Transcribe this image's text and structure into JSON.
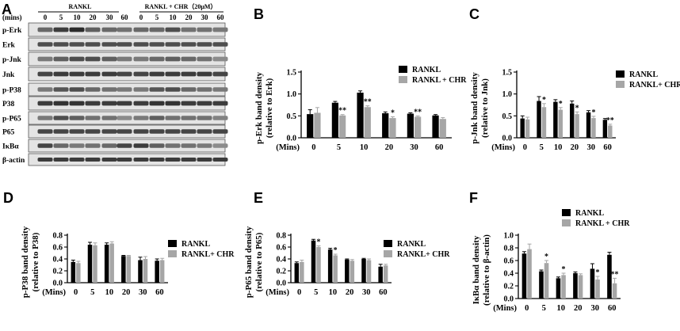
{
  "panel_letters": [
    "A",
    "B",
    "C",
    "D",
    "E",
    "F"
  ],
  "blot": {
    "mins_label": "(mins)",
    "groups": [
      "RANKL",
      "RANKL + CHR（20μM）"
    ],
    "time_points": [
      "0",
      "5",
      "10",
      "20",
      "30",
      "60"
    ],
    "rows": [
      "p-Erk",
      "Erk",
      "p-Jnk",
      "Jnk",
      "p-P38",
      "P38",
      "p-P65",
      "P65",
      "IκBα",
      "β-actin"
    ]
  },
  "chart_data": [
    {
      "panel": "B",
      "type": "bar",
      "ylabel_lines": [
        "p-Erk band density",
        "(relative to Erk)"
      ],
      "xlabel": "(Mins)",
      "categories": [
        "0",
        "5",
        "10",
        "20",
        "30",
        "60"
      ],
      "ylim": [
        0,
        1.5
      ],
      "yticks": [
        "0.0",
        "0.5",
        "1.0",
        "1.5"
      ],
      "legend": [
        "RANKL",
        "RANKL + CHR"
      ],
      "series": [
        {
          "name": "RANKL",
          "color": "#000000",
          "values": [
            0.54,
            0.8,
            1.03,
            0.56,
            0.55,
            0.51
          ],
          "errors": [
            0.1,
            0.03,
            0.04,
            0.03,
            0.02,
            0.02
          ]
        },
        {
          "name": "RANKL + CHR",
          "color": "#a6a6a6",
          "values": [
            0.57,
            0.51,
            0.7,
            0.45,
            0.48,
            0.43
          ],
          "errors": [
            0.12,
            0.02,
            0.03,
            0.03,
            0.02,
            0.03
          ]
        }
      ],
      "sig": [
        "",
        "**",
        "**",
        "*",
        "**",
        ""
      ]
    },
    {
      "panel": "C",
      "type": "bar",
      "ylabel_lines": [
        "p-Jnk band density",
        "(relative to Jnk)"
      ],
      "xlabel": "(Mins)",
      "categories": [
        "0",
        "5",
        "10",
        "20",
        "30",
        "60"
      ],
      "ylim": [
        0,
        1.5
      ],
      "yticks": [
        "0.0",
        "0.5",
        "1.0",
        "1.5"
      ],
      "legend": [
        "RANKL",
        "RANKL+ CHR"
      ],
      "series": [
        {
          "name": "RANKL",
          "color": "#000000",
          "values": [
            0.44,
            0.84,
            0.82,
            0.78,
            0.58,
            0.41
          ],
          "errors": [
            0.06,
            0.1,
            0.05,
            0.06,
            0.04,
            0.03
          ]
        },
        {
          "name": "RANKL+ CHR",
          "color": "#a6a6a6",
          "values": [
            0.42,
            0.7,
            0.64,
            0.54,
            0.45,
            0.28
          ],
          "errors": [
            0.05,
            0.08,
            0.05,
            0.05,
            0.04,
            0.03
          ]
        }
      ],
      "sig": [
        "",
        "*",
        "*",
        "*",
        "*",
        "**"
      ]
    },
    {
      "panel": "D",
      "type": "bar",
      "ylabel_lines": [
        "p-P38 band density",
        "(relative to P38)"
      ],
      "xlabel": "(Mins)",
      "categories": [
        "0",
        "5",
        "10",
        "20",
        "30",
        "60"
      ],
      "ylim": [
        0,
        0.8
      ],
      "yticks": [
        "0.0",
        "0.2",
        "0.4",
        "0.6",
        "0.8"
      ],
      "legend": [
        "RANKL",
        "RANKL+ CHR"
      ],
      "series": [
        {
          "name": "RANKL",
          "color": "#000000",
          "values": [
            0.35,
            0.64,
            0.64,
            0.45,
            0.38,
            0.37
          ],
          "errors": [
            0.03,
            0.04,
            0.03,
            0.01,
            0.05,
            0.03
          ]
        },
        {
          "name": "RANKL+ CHR",
          "color": "#a6a6a6",
          "values": [
            0.33,
            0.63,
            0.66,
            0.45,
            0.4,
            0.38
          ],
          "errors": [
            0.03,
            0.04,
            0.03,
            0.01,
            0.04,
            0.03
          ]
        }
      ],
      "sig": [
        "",
        "",
        "",
        "",
        "",
        ""
      ]
    },
    {
      "panel": "E",
      "type": "bar",
      "ylabel_lines": [
        "p-P65 band density",
        "(relative to P65)"
      ],
      "xlabel": "(Mins)",
      "categories": [
        "0",
        "5",
        "10",
        "20",
        "30",
        "60"
      ],
      "ylim": [
        0,
        0.8
      ],
      "yticks": [
        "0.0",
        "0.2",
        "0.4",
        "0.6",
        "0.8"
      ],
      "legend": [
        "RANKL",
        "RANKL+ CHR"
      ],
      "series": [
        {
          "name": "RANKL",
          "color": "#000000",
          "values": [
            0.33,
            0.71,
            0.56,
            0.39,
            0.4,
            0.27
          ],
          "errors": [
            0.02,
            0.02,
            0.02,
            0.01,
            0.01,
            0.04
          ]
        },
        {
          "name": "RANKL+ CHR",
          "color": "#a6a6a6",
          "values": [
            0.35,
            0.6,
            0.46,
            0.37,
            0.38,
            0.29
          ],
          "errors": [
            0.03,
            0.02,
            0.02,
            0.02,
            0.02,
            0.02
          ]
        }
      ],
      "sig": [
        "",
        "*",
        "*",
        "",
        "",
        ""
      ]
    },
    {
      "panel": "F",
      "type": "bar",
      "ylabel_lines": [
        "IκBα band density",
        "(relative to β-actin)"
      ],
      "xlabel": "(Mins)",
      "categories": [
        "0",
        "5",
        "10",
        "20",
        "30",
        "60"
      ],
      "ylim": [
        0,
        1.0
      ],
      "yticks": [
        "0.0",
        "0.2",
        "0.4",
        "0.6",
        "0.8",
        "1.0"
      ],
      "legend": [
        "RANKL",
        "RANKL + CHR"
      ],
      "series": [
        {
          "name": "RANKL",
          "color": "#000000",
          "values": [
            0.71,
            0.43,
            0.32,
            0.4,
            0.47,
            0.69
          ],
          "errors": [
            0.03,
            0.02,
            0.02,
            0.02,
            0.08,
            0.04
          ]
        },
        {
          "name": "RANKL + CHR",
          "color": "#a6a6a6",
          "values": [
            0.78,
            0.56,
            0.37,
            0.37,
            0.3,
            0.24
          ],
          "errors": [
            0.08,
            0.04,
            0.03,
            0.02,
            0.05,
            0.08
          ]
        }
      ],
      "sig": [
        "",
        "*",
        "*",
        "",
        "*",
        "**"
      ]
    }
  ]
}
